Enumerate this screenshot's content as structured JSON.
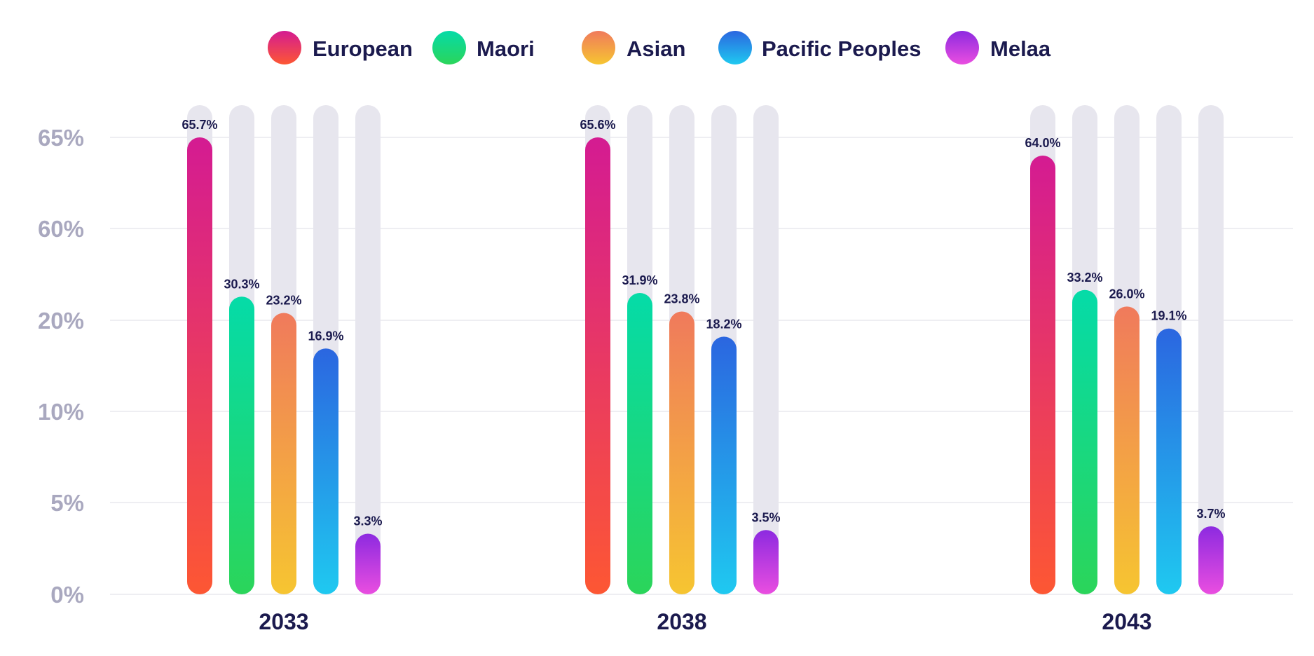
{
  "chart_data": {
    "type": "bar",
    "title": "",
    "xlabel": "",
    "ylabel": "",
    "categories": [
      "2033",
      "2038",
      "2043"
    ],
    "y_ticks": [
      "0%",
      "5%",
      "10%",
      "20%",
      "60%",
      "65%"
    ],
    "grid": true,
    "legend_position": "top",
    "series": [
      {
        "name": "European",
        "values": [
          65.7,
          65.6,
          64.0
        ],
        "labels": [
          "65.7%",
          "65.6%",
          "64.0%"
        ],
        "colors": [
          "#d41b92",
          "#fd5733"
        ]
      },
      {
        "name": "Maori",
        "values": [
          30.3,
          31.9,
          33.2
        ],
        "labels": [
          "30.3%",
          "31.9%",
          "33.2%"
        ],
        "colors": [
          "#05dba8",
          "#2bd55a"
        ]
      },
      {
        "name": "Asian",
        "values": [
          23.2,
          23.8,
          26.0
        ],
        "labels": [
          "23.2%",
          "23.8%",
          "26.0%"
        ],
        "colors": [
          "#f07a5c",
          "#f6c531"
        ]
      },
      {
        "name": "Pacific Peoples",
        "values": [
          16.9,
          18.2,
          19.1
        ],
        "labels": [
          "16.9%",
          "18.2%",
          "19.1%"
        ],
        "colors": [
          "#2b66e0",
          "#1fc9f0"
        ]
      },
      {
        "name": "Melaa",
        "values": [
          3.3,
          3.5,
          3.7
        ],
        "labels": [
          "3.3%",
          "3.5%",
          "3.7%"
        ],
        "colors": [
          "#8d2ae0",
          "#ea4ee0"
        ]
      }
    ],
    "track_color": "#e7e6ee",
    "grid_color": "#dcdce6"
  }
}
